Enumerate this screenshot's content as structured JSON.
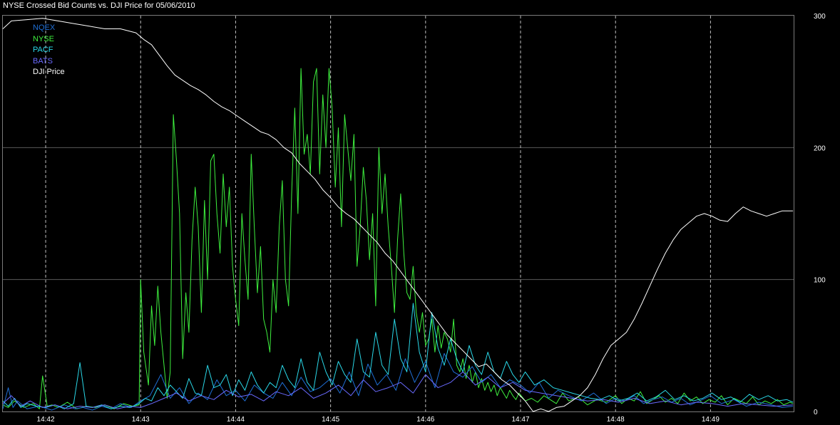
{
  "chart_data": {
    "type": "line",
    "title": "NYSE Crossed Bid Counts vs. DJI Price for 05/06/2010",
    "xlabel": "",
    "ylabel": "",
    "x_range": [
      14.5,
      522.4
    ],
    "x_ticks": [
      "14:42",
      "14:43",
      "14:44",
      "14:45",
      "14:46",
      "14:47",
      "14:48",
      "14:49"
    ],
    "x_tick_values": [
      42,
      103,
      164,
      225,
      286,
      347,
      408,
      469
    ],
    "ylim": [
      0,
      300
    ],
    "y_ticks": [
      0,
      100,
      200,
      300
    ],
    "grid": true,
    "legend_position": "top-left",
    "background": "#000000",
    "series": [
      {
        "name": "NQEX",
        "color": "#1f6fd6",
        "x": [
          14.5,
          18,
          21,
          24,
          30,
          38,
          46,
          54,
          61,
          66,
          72,
          78,
          84,
          90,
          97,
          103,
          109,
          116,
          122,
          128,
          134,
          140,
          146,
          152,
          158,
          164,
          170,
          176,
          182,
          188,
          194,
          200,
          206,
          212,
          218,
          225,
          231,
          237,
          243,
          249,
          255,
          261,
          267,
          273,
          279,
          286,
          292,
          298,
          304,
          310,
          316,
          322,
          328,
          334,
          340,
          347,
          353,
          359,
          365,
          371,
          378,
          386,
          394,
          402,
          408,
          414,
          420,
          426,
          432,
          438,
          444,
          450,
          456,
          462,
          469,
          476,
          484,
          492,
          500,
          508,
          515,
          522
        ],
        "y": [
          2,
          18,
          3,
          8,
          2,
          4,
          1,
          5,
          2,
          3,
          1,
          4,
          2,
          6,
          3,
          8,
          12,
          28,
          10,
          18,
          6,
          14,
          9,
          24,
          12,
          16,
          8,
          20,
          14,
          10,
          22,
          12,
          26,
          15,
          18,
          25,
          14,
          30,
          12,
          36,
          20,
          28,
          16,
          40,
          22,
          38,
          18,
          44,
          30,
          26,
          34,
          22,
          28,
          18,
          24,
          20,
          14,
          22,
          10,
          16,
          12,
          8,
          14,
          6,
          10,
          8,
          12,
          6,
          9,
          11,
          7,
          10,
          5,
          8,
          12,
          6,
          9,
          4,
          7,
          5,
          3,
          4
        ]
      },
      {
        "name": "NYSE",
        "color": "#3ef03e",
        "x": [
          14.5,
          18,
          22,
          28,
          34,
          38,
          40,
          43,
          46,
          50,
          56,
          62,
          68,
          74,
          80,
          86,
          92,
          98,
          102,
          103,
          105,
          108,
          110,
          112,
          114,
          116,
          118,
          120,
          122,
          124,
          126,
          128,
          130,
          132,
          134,
          136,
          138,
          140,
          142,
          144,
          146,
          148,
          150,
          152,
          154,
          156,
          158,
          160,
          162,
          164,
          166,
          168,
          170,
          172,
          174,
          176,
          178,
          180,
          182,
          184,
          186,
          188,
          190,
          192,
          194,
          196,
          198,
          200,
          202,
          204,
          206,
          208,
          210,
          212,
          214,
          216,
          218,
          220,
          222,
          224,
          226,
          228,
          230,
          232,
          234,
          236,
          238,
          240,
          242,
          244,
          246,
          248,
          250,
          252,
          254,
          256,
          258,
          260,
          262,
          264,
          266,
          268,
          270,
          272,
          274,
          276,
          278,
          280,
          282,
          284,
          286,
          288,
          290,
          292,
          294,
          296,
          298,
          300,
          302,
          304,
          306,
          308,
          310,
          312,
          314,
          316,
          318,
          320,
          322,
          324,
          326,
          328,
          330,
          332,
          334,
          336,
          338,
          340,
          342,
          344,
          346,
          348,
          350,
          354,
          358,
          362,
          366,
          370,
          374,
          378,
          384,
          390,
          396,
          402,
          408,
          412,
          416,
          420,
          424,
          428,
          432,
          436,
          440,
          444,
          448,
          452,
          456,
          460,
          464,
          468,
          472,
          476,
          480,
          484,
          488,
          492,
          496,
          500,
          504,
          508,
          512,
          516,
          520,
          522
        ],
        "y": [
          5,
          3,
          8,
          3,
          6,
          2,
          27,
          4,
          5,
          3,
          7,
          2,
          4,
          3,
          5,
          2,
          6,
          4,
          5,
          100,
          45,
          20,
          80,
          50,
          95,
          60,
          35,
          10,
          30,
          225,
          190,
          150,
          40,
          90,
          60,
          130,
          170,
          140,
          75,
          160,
          100,
          190,
          195,
          150,
          120,
          180,
          140,
          170,
          110,
          85,
          65,
          150,
          115,
          85,
          195,
          140,
          90,
          125,
          70,
          60,
          45,
          100,
          75,
          140,
          175,
          100,
          80,
          165,
          230,
          150,
          260,
          195,
          210,
          180,
          250,
          260,
          180,
          240,
          200,
          260,
          230,
          170,
          215,
          140,
          225,
          200,
          175,
          210,
          110,
          140,
          185,
          160,
          115,
          150,
          80,
          200,
          150,
          180,
          140,
          110,
          75,
          130,
          165,
          120,
          90,
          85,
          110,
          75,
          60,
          75,
          50,
          55,
          70,
          45,
          65,
          48,
          60,
          55,
          45,
          70,
          35,
          30,
          40,
          25,
          35,
          22,
          30,
          18,
          25,
          16,
          22,
          15,
          20,
          12,
          18,
          14,
          10,
          16,
          12,
          9,
          14,
          11,
          8,
          10,
          7,
          12,
          9,
          6,
          14,
          8,
          11,
          5,
          9,
          7,
          12,
          6,
          10,
          8,
          15,
          6,
          9,
          12,
          7,
          10,
          6,
          14,
          8,
          11,
          6,
          9,
          7,
          12,
          5,
          10,
          8,
          6,
          11,
          5,
          8,
          6,
          9,
          5,
          7,
          6
        ]
      },
      {
        "name": "PACF",
        "color": "#2ad8e8",
        "x": [
          14.5,
          18,
          22,
          26,
          30,
          36,
          42,
          48,
          54,
          60,
          64,
          68,
          72,
          78,
          84,
          90,
          96,
          102,
          106,
          110,
          114,
          118,
          122,
          126,
          130,
          134,
          138,
          142,
          146,
          150,
          154,
          158,
          162,
          166,
          170,
          174,
          178,
          182,
          186,
          190,
          194,
          198,
          202,
          206,
          210,
          214,
          218,
          222,
          226,
          230,
          234,
          238,
          242,
          246,
          250,
          254,
          258,
          262,
          266,
          270,
          274,
          278,
          282,
          286,
          290,
          294,
          298,
          302,
          306,
          310,
          314,
          318,
          322,
          326,
          330,
          334,
          338,
          342,
          346,
          350,
          356,
          362,
          368,
          374,
          380,
          386,
          392,
          398,
          404,
          410,
          416,
          422,
          428,
          434,
          440,
          446,
          452,
          458,
          464,
          470,
          476,
          482,
          488,
          494,
          500,
          506,
          512,
          518,
          522
        ],
        "y": [
          8,
          4,
          10,
          3,
          6,
          4,
          3,
          5,
          2,
          6,
          37,
          4,
          3,
          5,
          2,
          4,
          3,
          6,
          10,
          8,
          18,
          12,
          20,
          15,
          10,
          25,
          14,
          12,
          35,
          18,
          20,
          28,
          12,
          24,
          16,
          30,
          20,
          14,
          22,
          18,
          35,
          24,
          18,
          40,
          22,
          16,
          45,
          30,
          20,
          38,
          28,
          22,
          55,
          30,
          26,
          60,
          35,
          28,
          70,
          40,
          30,
          82,
          45,
          30,
          75,
          48,
          35,
          55,
          40,
          30,
          50,
          35,
          28,
          45,
          30,
          25,
          38,
          28,
          22,
          30,
          20,
          24,
          18,
          16,
          14,
          12,
          10,
          9,
          12,
          8,
          10,
          14,
          8,
          11,
          16,
          9,
          12,
          8,
          10,
          14,
          9,
          11,
          7,
          13,
          9,
          12,
          8,
          9,
          7
        ]
      },
      {
        "name": "BATS",
        "color": "#6a6aff",
        "x": [
          14.5,
          20,
          26,
          32,
          40,
          48,
          56,
          64,
          72,
          80,
          88,
          96,
          103,
          110,
          118,
          126,
          134,
          142,
          150,
          158,
          166,
          174,
          182,
          190,
          198,
          206,
          214,
          222,
          230,
          238,
          246,
          254,
          262,
          270,
          278,
          286,
          294,
          302,
          310,
          318,
          326,
          334,
          342,
          350,
          360,
          370,
          380,
          390,
          400,
          410,
          420,
          430,
          440,
          450,
          460,
          470,
          480,
          490,
          500,
          510,
          522
        ],
        "y": [
          6,
          12,
          4,
          8,
          3,
          5,
          2,
          4,
          3,
          5,
          2,
          4,
          3,
          6,
          10,
          14,
          8,
          12,
          9,
          16,
          11,
          13,
          8,
          15,
          12,
          18,
          10,
          14,
          20,
          12,
          24,
          15,
          18,
          22,
          14,
          28,
          18,
          22,
          30,
          20,
          26,
          18,
          22,
          16,
          14,
          12,
          10,
          8,
          9,
          7,
          10,
          6,
          8,
          5,
          7,
          6,
          4,
          6,
          5,
          4,
          5
        ]
      },
      {
        "name": "DJI Price",
        "color": "#ffffff",
        "x": [
          14.5,
          20,
          30,
          40,
          50,
          60,
          70,
          80,
          90,
          100,
          105,
          110,
          115,
          120,
          125,
          130,
          135,
          140,
          145,
          150,
          155,
          160,
          165,
          170,
          175,
          180,
          185,
          190,
          195,
          200,
          205,
          210,
          215,
          220,
          225,
          230,
          235,
          240,
          245,
          250,
          255,
          260,
          265,
          270,
          275,
          280,
          285,
          290,
          295,
          300,
          305,
          310,
          315,
          320,
          325,
          330,
          335,
          340,
          345,
          350,
          355,
          360,
          365,
          370,
          375,
          380,
          385,
          390,
          395,
          400,
          405,
          410,
          415,
          420,
          425,
          430,
          435,
          440,
          445,
          450,
          455,
          460,
          465,
          470,
          475,
          480,
          485,
          490,
          495,
          500,
          505,
          510,
          515,
          522
        ],
        "y": [
          290,
          296,
          297,
          298,
          296,
          294,
          292,
          290,
          290,
          287,
          282,
          278,
          270,
          262,
          255,
          251,
          247,
          244,
          240,
          235,
          231,
          228,
          224,
          220,
          216,
          212,
          210,
          206,
          200,
          196,
          188,
          182,
          176,
          168,
          162,
          155,
          150,
          146,
          140,
          134,
          128,
          120,
          114,
          106,
          98,
          90,
          82,
          74,
          66,
          58,
          52,
          46,
          40,
          34,
          36,
          30,
          24,
          20,
          14,
          8,
          0,
          2,
          0,
          3,
          4,
          8,
          12,
          18,
          28,
          40,
          50,
          55,
          60,
          70,
          82,
          95,
          108,
          120,
          130,
          138,
          143,
          148,
          150,
          148,
          145,
          144,
          150,
          155,
          152,
          150,
          148,
          150,
          152,
          152
        ]
      }
    ]
  }
}
